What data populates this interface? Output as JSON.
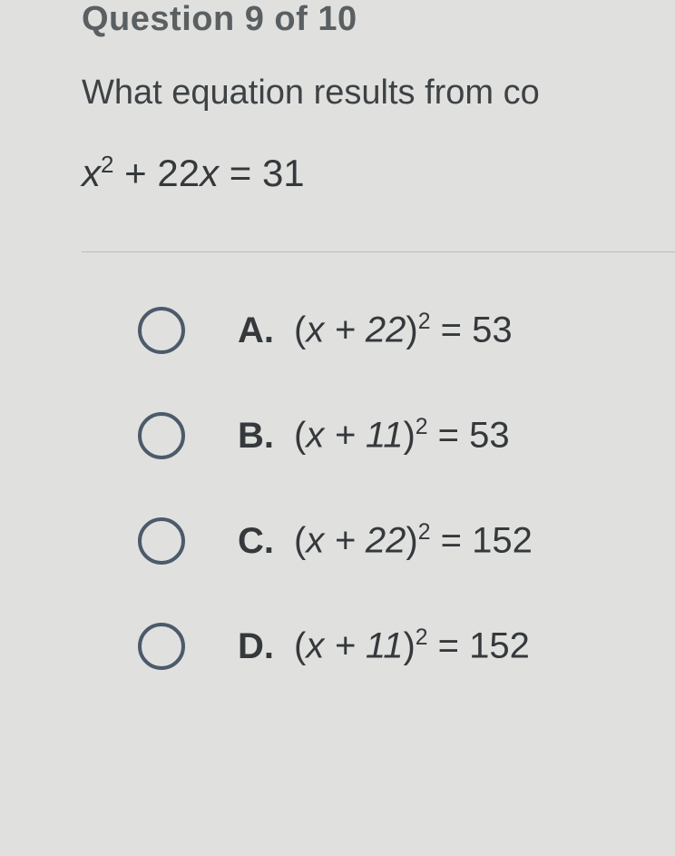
{
  "header": "Question 9 of 10",
  "prompt": "What equation results from co",
  "equation": {
    "lhs_var": "x",
    "lhs_exp": "2",
    "lhs_rest": " + 22",
    "lhs_var2": "x",
    "eq": " = 31"
  },
  "options": [
    {
      "letter": "A.",
      "inner": "x + 22",
      "exp": "2",
      "rhs": " = 53"
    },
    {
      "letter": "B.",
      "inner": "x + 11",
      "exp": "2",
      "rhs": " = 53"
    },
    {
      "letter": "C.",
      "inner": "x + 22",
      "exp": "2",
      "rhs": " = 152"
    },
    {
      "letter": "D.",
      "inner": "x + 11",
      "exp": "2",
      "rhs": " = 152"
    }
  ],
  "colors": {
    "background": "#e0e1df",
    "header_text": "#5a5f62",
    "body_text": "#3e4245",
    "radio_border": "#4c5a6a",
    "divider": "#b9bdbb"
  }
}
